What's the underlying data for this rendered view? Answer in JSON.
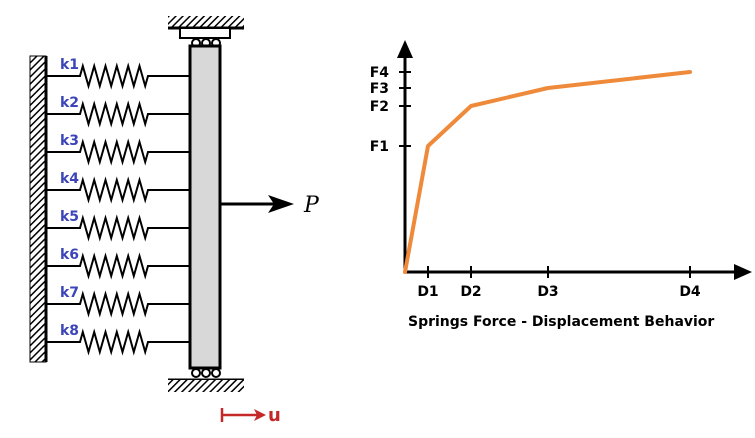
{
  "springs": {
    "labels": [
      "k1",
      "k2",
      "k3",
      "k4",
      "k5",
      "k6",
      "k7",
      "k8"
    ]
  },
  "load": {
    "label": "P"
  },
  "displacement": {
    "label": "u",
    "color": "#c62828"
  },
  "colors": {
    "spring_label": "#3b45b7",
    "curve": "#ee8a3a",
    "bar_fill": "#d8d8d8"
  },
  "chart_data": {
    "type": "line",
    "title": "",
    "caption": "Springs Force - Displacement Behavior",
    "xlabel": "",
    "ylabel": "",
    "x_ticks": [
      "D1",
      "D2",
      "D3",
      "D4"
    ],
    "y_ticks": [
      "F1",
      "F2",
      "F3",
      "F4"
    ],
    "series": [
      {
        "points": [
          [
            "0",
            "0"
          ],
          [
            "D1",
            "F1"
          ],
          [
            "D2",
            "F2"
          ],
          [
            "D3",
            "F3"
          ],
          [
            "D4",
            "F4"
          ]
        ]
      }
    ],
    "grid": false,
    "legend": "none"
  }
}
